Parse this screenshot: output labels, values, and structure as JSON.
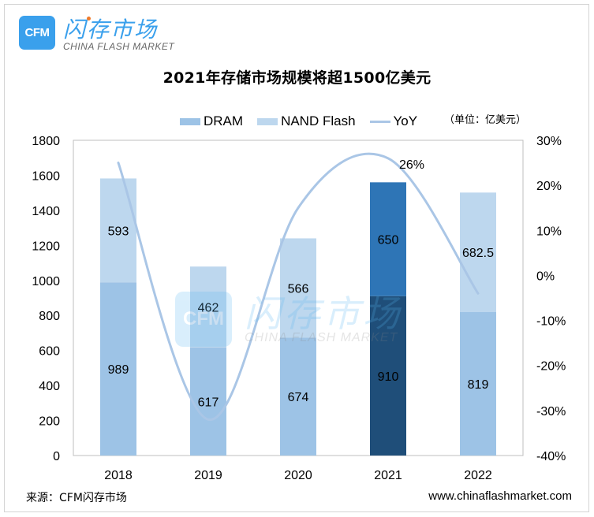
{
  "logo": {
    "badge": "CFM",
    "name_cn": "闪存市场",
    "name_en": "CHINA FLASH MARKET"
  },
  "watermark": {
    "badge": "CFM",
    "name_cn": "闪存市场",
    "name_en": "CHINA FLASH MARKET"
  },
  "unit_note": "（单位：亿美元）",
  "footer": {
    "source": "来源：CFM闪存市场",
    "website": "www.chinaflashmarket.com"
  },
  "colors": {
    "dram": "#9dc3e6",
    "nand": "#bdd7ee",
    "yoy_line": "#aac6e6",
    "dram_2021": "#1f4e79",
    "nand_2021": "#2e75b6",
    "axis_frame": "#bfbfbf"
  },
  "chart_data": {
    "type": "bar",
    "stacked": true,
    "title": "2021年存储市场规模将超1500亿美元",
    "categories": [
      "2018",
      "2019",
      "2020",
      "2021",
      "2022"
    ],
    "series": [
      {
        "name": "DRAM",
        "type": "bar",
        "axis": "left",
        "values": [
          989,
          617,
          674,
          910,
          819
        ]
      },
      {
        "name": "NAND Flash",
        "type": "bar",
        "axis": "left",
        "values": [
          593,
          462,
          566,
          650,
          682.5
        ]
      },
      {
        "name": "YoY",
        "type": "line",
        "axis": "right",
        "smooth": true,
        "values": [
          25,
          -32,
          15,
          26,
          -4
        ],
        "labels": [
          "",
          "",
          "",
          "26%",
          ""
        ]
      }
    ],
    "highlight_category": "2021",
    "ylim": [
      0,
      1800
    ],
    "yticks": [
      "0",
      "200",
      "400",
      "600",
      "800",
      "1000",
      "1200",
      "1400",
      "1600",
      "1800"
    ],
    "y2lim": [
      -40,
      30
    ],
    "y2ticks": [
      "-40%",
      "-30%",
      "-20%",
      "-10%",
      "0%",
      "10%",
      "20%",
      "30%"
    ],
    "xlabel": "",
    "ylabel": "",
    "y2label": "",
    "legend": {
      "position": "top",
      "entries": [
        "DRAM",
        "NAND Flash",
        "YoY"
      ]
    },
    "grid": false
  }
}
